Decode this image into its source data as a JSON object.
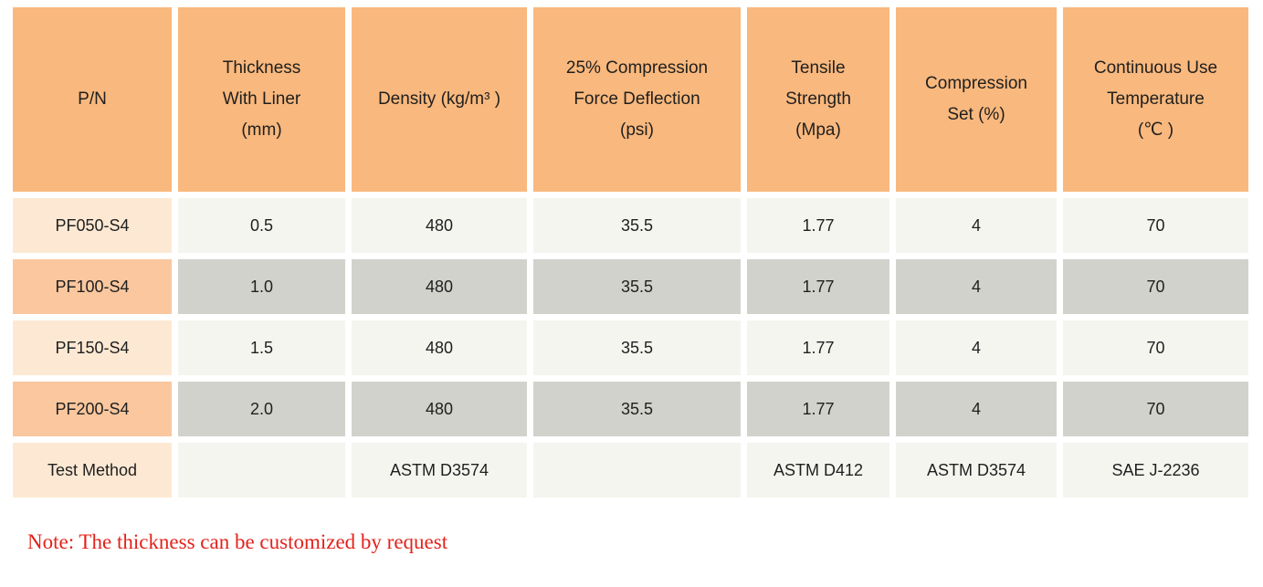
{
  "palette": {
    "header_orange": "#f9b87d",
    "row_label_light": "#fde9d3",
    "row_label_orange": "#fac79e",
    "data_light": "#f5f5f0",
    "data_gray": "#d2d2cc",
    "text": "#1f1f1f",
    "note_red": "#e3221b",
    "background": "#ffffff"
  },
  "table": {
    "headers": [
      {
        "lines": [
          "P/N"
        ]
      },
      {
        "lines": [
          "Thickness",
          "With Liner",
          "(mm)"
        ]
      },
      {
        "lines": [
          "Density (kg/m³ )"
        ]
      },
      {
        "lines": [
          "25% Compression",
          "Force Deflection",
          "(psi)"
        ]
      },
      {
        "lines": [
          "Tensile",
          "Strength",
          "(Mpa)"
        ]
      },
      {
        "lines": [
          "Compression",
          "Set (%)"
        ]
      },
      {
        "lines": [
          "Continuous Use",
          "Temperature",
          "(℃ )"
        ]
      }
    ],
    "rows": [
      {
        "pn": "PF050-S4",
        "values": [
          "0.5",
          "480",
          "35.5",
          "1.77",
          "4",
          "70"
        ]
      },
      {
        "pn": "PF100-S4",
        "values": [
          "1.0",
          "480",
          "35.5",
          "1.77",
          "4",
          "70"
        ]
      },
      {
        "pn": "PF150-S4",
        "values": [
          "1.5",
          "480",
          "35.5",
          "1.77",
          "4",
          "70"
        ]
      },
      {
        "pn": "PF200-S4",
        "values": [
          "2.0",
          "480",
          "35.5",
          "1.77",
          "4",
          "70"
        ]
      },
      {
        "pn": "Test Method",
        "values": [
          "",
          "ASTM D3574",
          "",
          "ASTM D412",
          "ASTM D3574",
          "SAE J-2236"
        ]
      }
    ]
  },
  "note": {
    "text": "Note: The thickness can be customized by request"
  }
}
